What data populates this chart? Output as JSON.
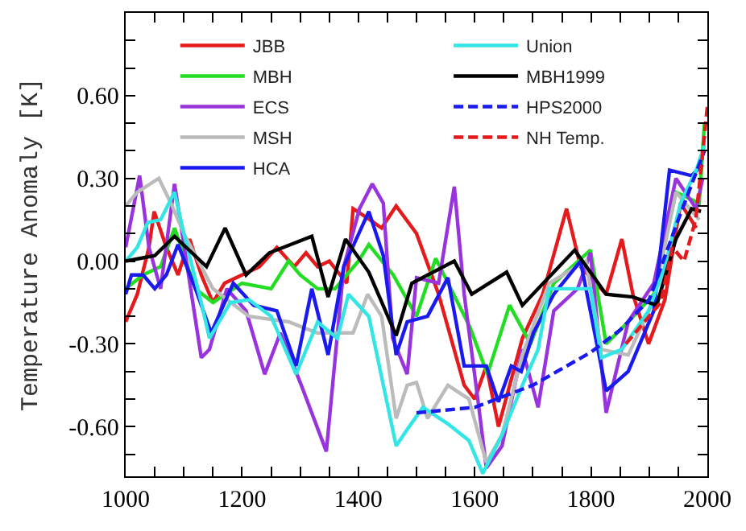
{
  "chart_data": {
    "type": "line",
    "ylabel": "Temperature Anomaly [K]",
    "xlim": [
      1000,
      2000
    ],
    "ylim": [
      -0.78,
      0.9
    ],
    "xticks": [
      1000,
      {
        "value": 1050,
        "label": null
      },
      {
        "value": 1100,
        "label": null
      },
      {
        "value": 1150,
        "label": null
      },
      1200,
      {
        "value": 1250,
        "label": null
      },
      {
        "value": 1300,
        "label": null
      },
      {
        "value": 1350,
        "label": null
      },
      1400,
      {
        "value": 1450,
        "label": null
      },
      {
        "value": 1500,
        "label": null
      },
      {
        "value": 1550,
        "label": null
      },
      1600,
      {
        "value": 1650,
        "label": null
      },
      {
        "value": 1700,
        "label": null
      },
      {
        "value": 1750,
        "label": null
      },
      1800,
      {
        "value": 1850,
        "label": null
      },
      {
        "value": 1900,
        "label": null
      },
      {
        "value": 1950,
        "label": null
      },
      2000
    ],
    "yticks": [
      {
        "value": -0.7,
        "label": null
      },
      {
        "value": -0.6,
        "label": "-0.60"
      },
      {
        "value": -0.5,
        "label": null
      },
      {
        "value": -0.4,
        "label": null
      },
      {
        "value": -0.3,
        "label": "-0.30"
      },
      {
        "value": -0.2,
        "label": null
      },
      {
        "value": -0.1,
        "label": null
      },
      {
        "value": 0,
        "label": "0.00"
      },
      {
        "value": 0.1,
        "label": null
      },
      {
        "value": 0.2,
        "label": null
      },
      {
        "value": 0.3,
        "label": "0.30"
      },
      {
        "value": 0.4,
        "label": null
      },
      {
        "value": 0.5,
        "label": null
      },
      {
        "value": 0.6,
        "label": "0.60"
      },
      {
        "value": 0.7,
        "label": null
      },
      {
        "value": 0.8,
        "label": null
      }
    ],
    "legend": "top",
    "series": [
      {
        "name": "JBB",
        "color": "#e41a1c",
        "x": [
          1000,
          1020,
          1040,
          1049,
          1070,
          1090,
          1110,
          1130,
          1150,
          1170,
          1200,
          1230,
          1260,
          1290,
          1310,
          1330,
          1350,
          1380,
          1391,
          1420,
          1440,
          1465,
          1500,
          1538,
          1582,
          1600,
          1620,
          1641,
          1682,
          1717,
          1758,
          1782,
          1826,
          1853,
          1872,
          1899,
          1927,
          1954,
          1981
        ],
        "values": [
          -0.22,
          -0.12,
          0.05,
          0.18,
          0.05,
          -0.05,
          0.08,
          -0.05,
          -0.15,
          -0.08,
          -0.05,
          -0.02,
          0.05,
          -0.02,
          0.03,
          -0.02,
          0.0,
          -0.08,
          0.19,
          0.15,
          0.12,
          0.2,
          0.1,
          -0.12,
          -0.45,
          -0.5,
          -0.38,
          -0.6,
          -0.28,
          -0.12,
          0.19,
          -0.02,
          -0.12,
          0.08,
          -0.12,
          -0.3,
          -0.14,
          0.21,
          0.12
        ]
      },
      {
        "name": "MBH",
        "color": "#22dd22",
        "x": [
          1000,
          1030,
          1060,
          1084,
          1120,
          1150,
          1200,
          1250,
          1280,
          1300,
          1330,
          1360,
          1400,
          1418,
          1460,
          1500,
          1533,
          1592,
          1622,
          1660,
          1696,
          1736,
          1799,
          1826,
          1864,
          1908,
          1946,
          1986,
          1995
        ],
        "values": [
          -0.1,
          -0.05,
          -0.02,
          0.12,
          -0.1,
          -0.15,
          -0.08,
          -0.1,
          0.0,
          -0.05,
          -0.1,
          -0.1,
          0.0,
          0.06,
          -0.05,
          -0.2,
          0.01,
          -0.24,
          -0.41,
          -0.16,
          -0.3,
          -0.08,
          0.04,
          -0.3,
          -0.22,
          -0.12,
          0.25,
          0.21,
          0.5
        ]
      },
      {
        "name": "ECS",
        "color": "#9933dd",
        "x": [
          1000,
          1024,
          1040,
          1060,
          1084,
          1130,
          1144,
          1174,
          1207,
          1239,
          1266,
          1302,
          1345,
          1375,
          1402,
          1424,
          1443,
          1459,
          1484,
          1500,
          1538,
          1565,
          1582,
          1606,
          1620,
          1647,
          1682,
          1709,
          1736,
          1777,
          1799,
          1826,
          1864,
          1908,
          1946,
          1981,
          1992
        ],
        "values": [
          0.05,
          0.31,
          0.05,
          -0.1,
          0.28,
          -0.35,
          -0.32,
          -0.1,
          -0.18,
          -0.41,
          -0.26,
          -0.45,
          -0.69,
          -0.02,
          0.19,
          0.28,
          0.21,
          -0.28,
          -0.41,
          -0.06,
          -0.08,
          0.27,
          -0.12,
          -0.51,
          -0.75,
          -0.67,
          -0.32,
          -0.53,
          -0.18,
          -0.1,
          0.03,
          -0.55,
          -0.22,
          -0.08,
          0.3,
          0.19,
          0.3
        ]
      },
      {
        "name": "MSH",
        "color": "#bbbbbb",
        "x": [
          1000,
          1020,
          1057,
          1080,
          1100,
          1150,
          1212,
          1280,
          1329,
          1391,
          1416,
          1440,
          1465,
          1484,
          1500,
          1519,
          1554,
          1590,
          1620,
          1647,
          1682,
          1728,
          1791,
          1818,
          1864,
          1908,
          1946,
          1986
        ],
        "values": [
          0.2,
          0.25,
          0.3,
          0.2,
          0.1,
          -0.1,
          -0.2,
          -0.22,
          -0.26,
          -0.26,
          -0.12,
          -0.2,
          -0.57,
          -0.45,
          -0.44,
          -0.57,
          -0.45,
          -0.5,
          -0.73,
          -0.63,
          -0.34,
          -0.08,
          0.0,
          -0.32,
          -0.34,
          -0.14,
          0.25,
          0.15
        ]
      },
      {
        "name": "HCA",
        "color": "#1a1aee",
        "x": [
          1000,
          1010,
          1030,
          1050,
          1070,
          1090,
          1120,
          1147,
          1185,
          1220,
          1260,
          1293,
          1320,
          1348,
          1375,
          1418,
          1443,
          1465,
          1484,
          1519,
          1554,
          1582,
          1620,
          1641,
          1663,
          1680,
          1701,
          1736,
          1782,
          1826,
          1864,
          1908,
          1935,
          1973,
          1992
        ],
        "values": [
          -0.12,
          -0.05,
          -0.05,
          -0.1,
          -0.05,
          0.06,
          -0.1,
          -0.26,
          -0.08,
          -0.16,
          -0.18,
          -0.38,
          -0.1,
          -0.34,
          -0.02,
          0.18,
          0.02,
          -0.34,
          -0.22,
          -0.2,
          -0.06,
          -0.38,
          -0.38,
          -0.51,
          -0.38,
          -0.4,
          -0.26,
          -0.12,
          0.0,
          -0.47,
          -0.4,
          -0.18,
          0.33,
          0.31,
          0.35
        ]
      },
      {
        "name": "Union",
        "color": "#33e5e5",
        "x": [
          1000,
          1020,
          1038,
          1060,
          1084,
          1100,
          1130,
          1144,
          1180,
          1212,
          1250,
          1293,
          1330,
          1364,
          1383,
          1418,
          1465,
          1484,
          1511,
          1554,
          1590,
          1614,
          1647,
          1682,
          1709,
          1728,
          1799,
          1818,
          1853,
          1899,
          1927,
          1954,
          1981,
          1995
        ],
        "values": [
          0.0,
          0.05,
          0.14,
          0.15,
          0.25,
          0.1,
          -0.15,
          -0.28,
          -0.15,
          -0.14,
          -0.2,
          -0.41,
          -0.22,
          -0.28,
          -0.12,
          -0.2,
          -0.67,
          -0.61,
          -0.53,
          -0.59,
          -0.65,
          -0.77,
          -0.63,
          -0.45,
          -0.32,
          -0.1,
          -0.1,
          -0.35,
          -0.32,
          -0.18,
          -0.02,
          0.21,
          0.33,
          0.42
        ]
      },
      {
        "name": "MBH1999",
        "color": "#000000",
        "x": [
          1000,
          1050,
          1084,
          1139,
          1171,
          1207,
          1247,
          1320,
          1348,
          1378,
          1418,
          1465,
          1492,
          1565,
          1595,
          1655,
          1682,
          1736,
          1772,
          1826,
          1872,
          1913,
          1946,
          1973,
          1989
        ],
        "values": [
          0.0,
          0.02,
          0.09,
          -0.02,
          0.12,
          -0.05,
          0.03,
          0.09,
          -0.13,
          0.08,
          -0.04,
          -0.27,
          -0.08,
          0.0,
          -0.12,
          -0.04,
          -0.16,
          -0.04,
          0.04,
          -0.12,
          -0.13,
          -0.16,
          0.08,
          0.19,
          0.18
        ]
      },
      {
        "name": "HPS2000",
        "color": "#1a1aee",
        "line_style": "dashed",
        "x": [
          1500,
          1600,
          1700,
          1800,
          1850,
          1900,
          1950,
          1995
        ],
        "values": [
          -0.55,
          -0.53,
          -0.45,
          -0.33,
          -0.25,
          -0.14,
          0.15,
          0.4
        ]
      },
      {
        "name": "NH Temp.",
        "color": "#e41a1c",
        "line_style": "dashed",
        "x": [
          1860,
          1900,
          1920,
          1940,
          1960,
          1980,
          1990,
          2000
        ],
        "values": [
          -0.3,
          -0.2,
          -0.15,
          0.05,
          0.0,
          0.15,
          0.35,
          0.56
        ]
      }
    ]
  }
}
